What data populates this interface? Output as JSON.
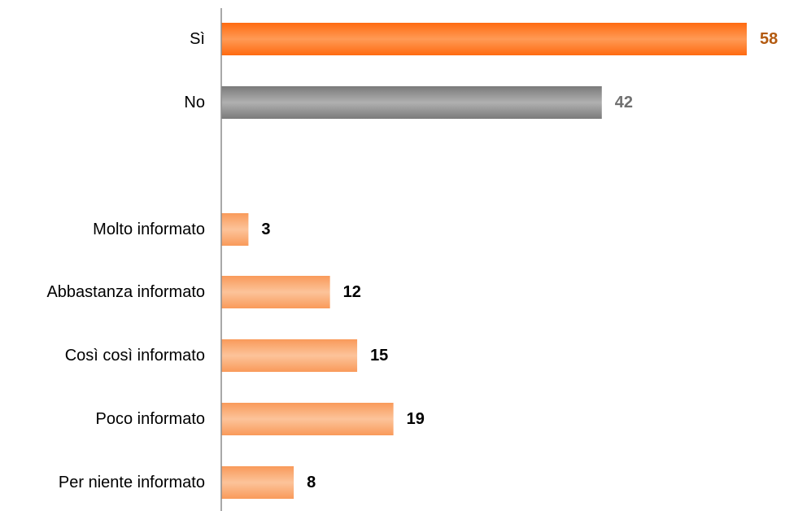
{
  "chart_data": {
    "type": "bar",
    "orientation": "horizontal",
    "title": "",
    "xlabel": "",
    "ylabel": "",
    "xlim": [
      0,
      60
    ],
    "grid": false,
    "legend": "none",
    "categories": [
      "Sì",
      "No",
      "",
      "Molto informato",
      "Abbastanza informato",
      "Così così informato",
      "Poco informato",
      "Per niente informato"
    ],
    "values": [
      58,
      42,
      null,
      3,
      12,
      15,
      19,
      8
    ],
    "bar_colors": [
      "#ff7f27",
      "#8c8c8c",
      null,
      "#f9a56a",
      "#f9a56a",
      "#f9a56a",
      "#f9a56a",
      "#f9a56a"
    ],
    "value_label_colors": [
      "#b35a10",
      "#707070",
      null,
      "#000000",
      "#000000",
      "#000000",
      "#000000",
      "#000000"
    ]
  }
}
